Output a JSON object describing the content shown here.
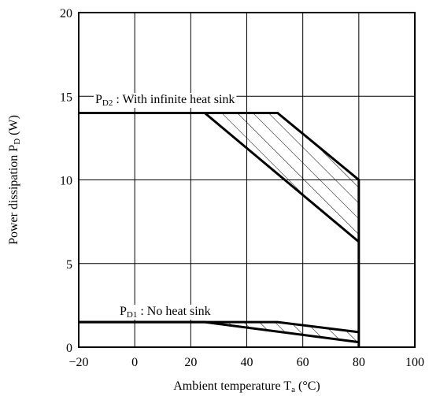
{
  "chart_data": {
    "type": "line",
    "xlabel_main": "Ambient temperature T",
    "xlabel_sub": "a",
    "xlabel_unit": " (°C)",
    "ylabel_main": "Power dissipation P",
    "ylabel_sub": "D",
    "ylabel_unit": " (W)",
    "xlim": [
      -20,
      100
    ],
    "ylim": [
      0,
      20
    ],
    "xticks": [
      -20,
      0,
      20,
      40,
      60,
      80,
      100
    ],
    "xtick_labels": [
      "−20",
      "0",
      "20",
      "40",
      "60",
      "80",
      "100"
    ],
    "yticks": [
      0,
      5,
      10,
      15,
      20
    ],
    "ytick_labels": [
      "0",
      "5",
      "10",
      "15",
      "20"
    ],
    "grid": true,
    "series": [
      {
        "name": "PD2 : With infinite heat sink",
        "label_main": "P",
        "label_sub": "D2",
        "label_rest": " : With infinite heat sink",
        "upper": {
          "x": [
            -20,
            51,
            80,
            80
          ],
          "y": [
            14,
            14,
            10,
            0
          ]
        },
        "lower": {
          "x": [
            -20,
            25,
            80
          ],
          "y": [
            14,
            14,
            6.3
          ]
        },
        "hatched_band": true
      },
      {
        "name": "PD1 : No heat sink",
        "label_main": "P",
        "label_sub": "D1",
        "label_rest": " : No heat sink",
        "upper": {
          "x": [
            -20,
            51,
            80
          ],
          "y": [
            1.5,
            1.5,
            0.9
          ]
        },
        "lower": {
          "x": [
            -20,
            25,
            80
          ],
          "y": [
            1.5,
            1.5,
            0.3
          ]
        },
        "hatched_band": true
      }
    ]
  }
}
